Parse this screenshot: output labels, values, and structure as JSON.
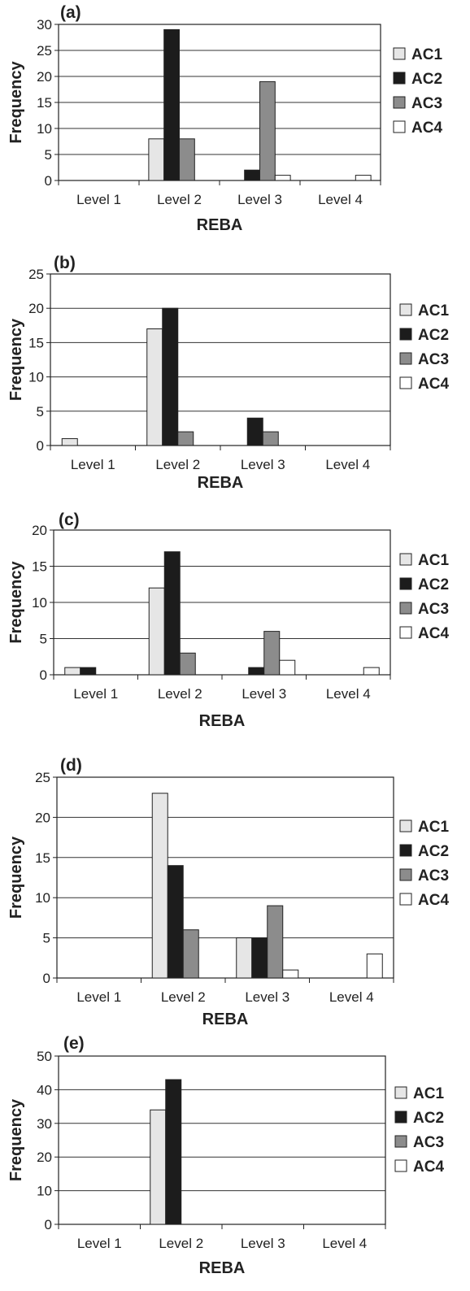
{
  "chart_data": [
    {
      "type": "bar",
      "panel_label": "(a)",
      "categories": [
        "Level 1",
        "Level 2",
        "Level 3",
        "Level 4"
      ],
      "series": [
        {
          "name": "AC1",
          "color": "#e6e6e6",
          "values": [
            0,
            8,
            0,
            0
          ]
        },
        {
          "name": "AC2",
          "color": "#1c1c1c",
          "values": [
            0,
            29,
            2,
            0
          ]
        },
        {
          "name": "AC3",
          "color": "#8c8c8c",
          "values": [
            0,
            8,
            19,
            0
          ]
        },
        {
          "name": "AC4",
          "color": "#ffffff",
          "values": [
            0,
            0,
            1,
            1
          ]
        }
      ],
      "xlabel": "REBA",
      "ylabel": "Frequency",
      "ylim": [
        0,
        30
      ],
      "yticks": [
        0,
        5,
        10,
        15,
        20,
        25,
        30
      ],
      "grid": true,
      "legend": "right"
    },
    {
      "type": "bar",
      "panel_label": "(b)",
      "categories": [
        "Level 1",
        "Level 2",
        "Level 3",
        "Level 4"
      ],
      "series": [
        {
          "name": "AC1",
          "color": "#e6e6e6",
          "values": [
            1,
            17,
            0,
            0
          ]
        },
        {
          "name": "AC2",
          "color": "#1c1c1c",
          "values": [
            0,
            20,
            4,
            0
          ]
        },
        {
          "name": "AC3",
          "color": "#8c8c8c",
          "values": [
            0,
            2,
            2,
            0
          ]
        },
        {
          "name": "AC4",
          "color": "#ffffff",
          "values": [
            0,
            0,
            0,
            0
          ]
        }
      ],
      "xlabel": "REBA",
      "ylabel": "Frequency",
      "ylim": [
        0,
        25
      ],
      "yticks": [
        0,
        5,
        10,
        15,
        20,
        25
      ],
      "grid": true,
      "legend": "right"
    },
    {
      "type": "bar",
      "panel_label": "(c)",
      "categories": [
        "Level 1",
        "Level 2",
        "Level 3",
        "Level 4"
      ],
      "series": [
        {
          "name": "AC1",
          "color": "#e6e6e6",
          "values": [
            1,
            12,
            0,
            0
          ]
        },
        {
          "name": "AC2",
          "color": "#1c1c1c",
          "values": [
            1,
            17,
            1,
            0
          ]
        },
        {
          "name": "AC3",
          "color": "#8c8c8c",
          "values": [
            0,
            3,
            6,
            0
          ]
        },
        {
          "name": "AC4",
          "color": "#ffffff",
          "values": [
            0,
            0,
            2,
            1
          ]
        }
      ],
      "xlabel": "REBA",
      "ylabel": "Frequency",
      "ylim": [
        0,
        20
      ],
      "yticks": [
        0,
        5,
        10,
        15,
        20
      ],
      "grid": true,
      "legend": "right"
    },
    {
      "type": "bar",
      "panel_label": "(d)",
      "categories": [
        "Level 1",
        "Level 2",
        "Level 3",
        "Level 4"
      ],
      "series": [
        {
          "name": "AC1",
          "color": "#e6e6e6",
          "values": [
            0,
            23,
            5,
            0
          ]
        },
        {
          "name": "AC2",
          "color": "#1c1c1c",
          "values": [
            0,
            14,
            5,
            0
          ]
        },
        {
          "name": "AC3",
          "color": "#8c8c8c",
          "values": [
            0,
            6,
            9,
            0
          ]
        },
        {
          "name": "AC4",
          "color": "#ffffff",
          "values": [
            0,
            0,
            1,
            3
          ]
        }
      ],
      "xlabel": "REBA",
      "ylabel": "Frequency",
      "ylim": [
        0,
        25
      ],
      "yticks": [
        0,
        5,
        10,
        15,
        20,
        25
      ],
      "grid": true,
      "legend": "right"
    },
    {
      "type": "bar",
      "panel_label": "(e)",
      "categories": [
        "Level 1",
        "Level 2",
        "Level 3",
        "Level 4"
      ],
      "series": [
        {
          "name": "AC1",
          "color": "#e6e6e6",
          "values": [
            0,
            34,
            0,
            0
          ]
        },
        {
          "name": "AC2",
          "color": "#1c1c1c",
          "values": [
            0,
            43,
            0,
            0
          ]
        },
        {
          "name": "AC3",
          "color": "#8c8c8c",
          "values": [
            0,
            0,
            0,
            0
          ]
        },
        {
          "name": "AC4",
          "color": "#ffffff",
          "values": [
            0,
            0,
            0,
            0
          ]
        }
      ],
      "xlabel": "REBA",
      "ylabel": "Frequency",
      "ylim": [
        0,
        50
      ],
      "yticks": [
        0,
        10,
        20,
        30,
        40,
        50
      ],
      "grid": true,
      "legend": "right"
    }
  ]
}
